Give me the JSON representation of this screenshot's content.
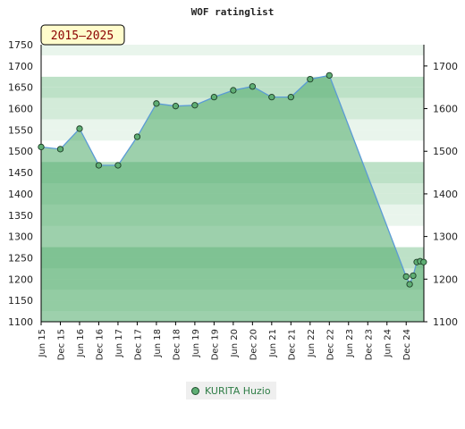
{
  "chart_data": {
    "type": "area",
    "title": "WOF ratinglist",
    "badge": "2015–2025",
    "ylim": [
      1100,
      1750
    ],
    "y_ticks_left": [
      1100,
      1150,
      1200,
      1250,
      1300,
      1350,
      1400,
      1450,
      1500,
      1550,
      1600,
      1650,
      1700,
      1750
    ],
    "y_ticks_right": [
      1100,
      1200,
      1300,
      1400,
      1500,
      1600,
      1700
    ],
    "x_tick_labels": [
      "Jun 15",
      "Dec 15",
      "Jun 16",
      "Dec 16",
      "Jun 17",
      "Dec 17",
      "Jun 18",
      "Dec 18",
      "Jun 19",
      "Dec 19",
      "Jun 20",
      "Dec 20",
      "Jun 21",
      "Dec 21",
      "Jun 22",
      "Dec 22",
      "Jun 23",
      "Dec 23",
      "Jun 24",
      "Dec 24"
    ],
    "legend_placement": "bottom-center",
    "series": [
      {
        "name": "KURITA Huzio",
        "color": "#5fae74",
        "points": [
          {
            "x": 0.0,
            "y": 1510
          },
          {
            "x": 1.0,
            "y": 1505
          },
          {
            "x": 2.0,
            "y": 1553
          },
          {
            "x": 3.0,
            "y": 1467
          },
          {
            "x": 4.0,
            "y": 1467
          },
          {
            "x": 5.0,
            "y": 1534
          },
          {
            "x": 6.0,
            "y": 1612
          },
          {
            "x": 7.0,
            "y": 1606
          },
          {
            "x": 8.0,
            "y": 1608
          },
          {
            "x": 9.0,
            "y": 1627
          },
          {
            "x": 10.0,
            "y": 1643
          },
          {
            "x": 11.0,
            "y": 1652
          },
          {
            "x": 12.0,
            "y": 1627
          },
          {
            "x": 13.0,
            "y": 1627
          },
          {
            "x": 14.0,
            "y": 1669
          },
          {
            "x": 15.0,
            "y": 1678
          },
          {
            "x": 19.0,
            "y": 1206
          },
          {
            "x": 19.18,
            "y": 1188
          },
          {
            "x": 19.36,
            "y": 1208
          },
          {
            "x": 19.55,
            "y": 1240
          },
          {
            "x": 19.73,
            "y": 1242
          },
          {
            "x": 19.91,
            "y": 1240
          }
        ]
      }
    ]
  }
}
